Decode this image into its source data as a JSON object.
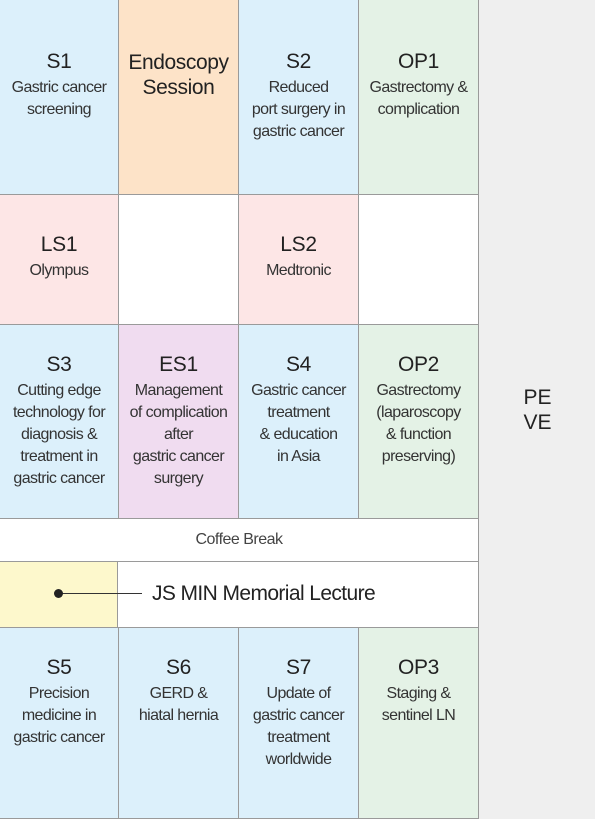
{
  "rows": [
    [
      {
        "code": "S1",
        "desc": "Gastric cancer\nscreening",
        "color": "blue"
      },
      {
        "code": "Endoscopy\nSession",
        "desc": "",
        "color": "orange"
      },
      {
        "code": "S2",
        "desc": "Reduced\nport surgery in\ngastric cancer",
        "color": "blue"
      },
      {
        "code": "OP1",
        "desc": "Gastrectomy &\ncomplication",
        "color": "green"
      }
    ],
    [
      {
        "code": "LS1",
        "desc": "Olympus",
        "color": "pink"
      },
      {
        "code": "",
        "desc": "",
        "color": "white"
      },
      {
        "code": "LS2",
        "desc": "Medtronic",
        "color": "pink"
      },
      {
        "code": "",
        "desc": "",
        "color": "white"
      }
    ],
    [
      {
        "code": "S3",
        "desc": "Cutting edge\ntechnology for\ndiagnosis &\ntreatment in\ngastric cancer",
        "color": "blue"
      },
      {
        "code": "ES1",
        "desc": "Management\nof complication\nafter\ngastric cancer\nsurgery",
        "color": "purple"
      },
      {
        "code": "S4",
        "desc": "Gastric cancer\ntreatment\n& education\nin Asia",
        "color": "blue"
      },
      {
        "code": "OP2",
        "desc": "Gastrectomy\n(laparoscopy\n& function\npreserving)",
        "color": "green"
      }
    ],
    [
      {
        "code": "S5",
        "desc": "Precision\nmedicine in\ngastric cancer",
        "color": "blue"
      },
      {
        "code": "S6",
        "desc": "GERD &\nhiatal hernia",
        "color": "blue"
      },
      {
        "code": "S7",
        "desc": "Update of\ngastric cancer\ntreatment\nworldwide",
        "color": "blue"
      },
      {
        "code": "OP3",
        "desc": "Staging &\nsentinel LN",
        "color": "green"
      }
    ]
  ],
  "coffee_break": "Coffee Break",
  "lecture": "JS MIN Memorial Lecture",
  "side_label": "PE\nVE",
  "colors": {
    "blue": "#dcf0fb",
    "orange": "#fde3c8",
    "green": "#e4f2e6",
    "pink": "#fde6e6",
    "purple": "#f0dcf0",
    "yellow": "#fdf8cc"
  }
}
